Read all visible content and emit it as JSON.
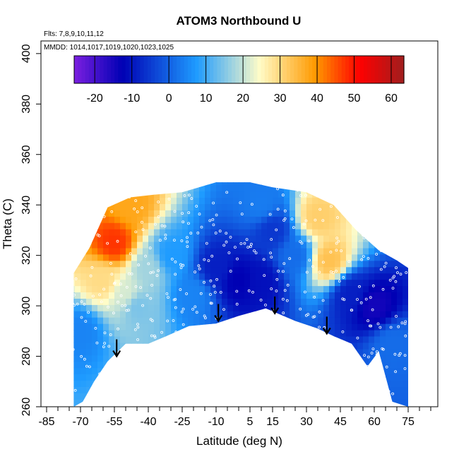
{
  "chart_data": {
    "type": "heatmap",
    "title": "ATOM3 Northbound U",
    "flights_note": "Flts: 7,8,9,10,11,12",
    "mmdd_note": "MMDD: 1014,1017,1019,1020,1023,1025",
    "xlabel": "Latitude (deg N)",
    "ylabel": "Theta (C)",
    "xlim": [
      -85,
      85
    ],
    "ylim": [
      260,
      405
    ],
    "x_ticks": [
      -85,
      -70,
      -55,
      -40,
      -25,
      -10,
      5,
      15,
      30,
      45,
      60,
      75
    ],
    "x_tick_labels": [
      "-85",
      "-70",
      "-55",
      "-40",
      "-25",
      "-10",
      "5",
      "15",
      "30",
      "45",
      "60",
      "75"
    ],
    "y_ticks": [
      260,
      280,
      300,
      320,
      340,
      360,
      380,
      400
    ],
    "y_tick_labels": [
      "260",
      "280",
      "300",
      "320",
      "340",
      "360",
      "380",
      "400"
    ],
    "colorbar": {
      "range": [
        -25,
        64
      ],
      "ticks": [
        -20,
        -10,
        0,
        10,
        20,
        30,
        40,
        50,
        60
      ],
      "tick_labels": [
        "-20",
        "-10",
        "0",
        "10",
        "20",
        "30",
        "40",
        "50",
        "60"
      ],
      "colors": [
        "#7b1fe0",
        "#0000b4",
        "#1e9bff",
        "#fffcc8",
        "#ff9a00",
        "#ff0000",
        "#a01e1e"
      ]
    },
    "arrows": [
      {
        "lat": -54,
        "theta": 280
      },
      {
        "lat": -9,
        "theta": 294
      },
      {
        "lat": 16,
        "theta": 297
      },
      {
        "lat": 39,
        "theta": 289
      }
    ],
    "coverage": {
      "upper_boundary": [
        [
          -73,
          313
        ],
        [
          -66,
          323
        ],
        [
          -58,
          339
        ],
        [
          -48,
          343
        ],
        [
          -38,
          344
        ],
        [
          -25,
          345
        ],
        [
          -10,
          349
        ],
        [
          5,
          349
        ],
        [
          15,
          347
        ],
        [
          30,
          345
        ],
        [
          42,
          340
        ],
        [
          52,
          330
        ],
        [
          62,
          322
        ],
        [
          70,
          318
        ],
        [
          75,
          315
        ]
      ],
      "lower_boundary": [
        [
          75,
          260
        ],
        [
          68,
          262
        ],
        [
          62,
          282
        ],
        [
          57,
          276
        ],
        [
          50,
          285
        ],
        [
          42,
          288
        ],
        [
          35,
          291
        ],
        [
          25,
          294
        ],
        [
          12,
          299
        ],
        [
          0,
          296
        ],
        [
          -10,
          293
        ],
        [
          -22,
          292
        ],
        [
          -32,
          288
        ],
        [
          -40,
          285
        ],
        [
          -50,
          285
        ],
        [
          -58,
          278
        ],
        [
          -64,
          270
        ],
        [
          -69,
          262
        ],
        [
          -73,
          260
        ]
      ]
    },
    "features": [
      {
        "lat": -55,
        "theta": 325,
        "value": 48
      },
      {
        "lat": -48,
        "theta": 340,
        "value": 38
      },
      {
        "lat": -60,
        "theta": 310,
        "value": 30
      },
      {
        "lat": -50,
        "theta": 305,
        "value": 22
      },
      {
        "lat": -40,
        "theta": 315,
        "value": 18
      },
      {
        "lat": -30,
        "theta": 320,
        "value": 8
      },
      {
        "lat": -20,
        "theta": 305,
        "value": 5
      },
      {
        "lat": -10,
        "theta": 315,
        "value": -8
      },
      {
        "lat": 0,
        "theta": 310,
        "value": -12
      },
      {
        "lat": 10,
        "theta": 310,
        "value": -10
      },
      {
        "lat": 15,
        "theta": 330,
        "value": -5
      },
      {
        "lat": 25,
        "theta": 320,
        "value": 2
      },
      {
        "lat": 35,
        "theta": 335,
        "value": 32
      },
      {
        "lat": 40,
        "theta": 318,
        "value": 34
      },
      {
        "lat": 50,
        "theta": 305,
        "value": -8
      },
      {
        "lat": 60,
        "theta": 300,
        "value": -14
      },
      {
        "lat": -70,
        "theta": 290,
        "value": 5
      },
      {
        "lat": 68,
        "theta": 285,
        "value": 2
      },
      {
        "lat": -45,
        "theta": 300,
        "value": 15
      },
      {
        "lat": 10,
        "theta": 340,
        "value": 4
      }
    ]
  }
}
